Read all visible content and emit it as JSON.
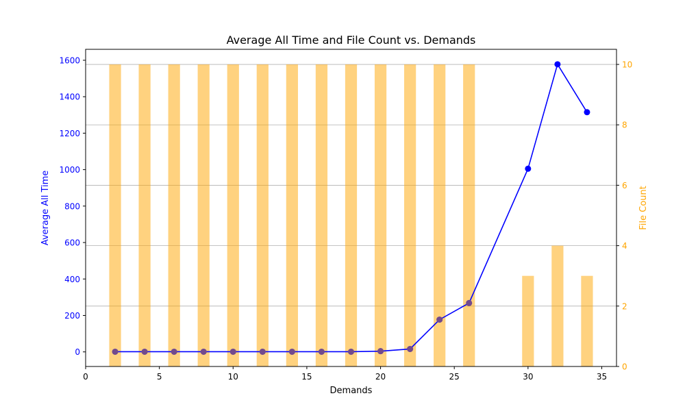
{
  "chart_data": {
    "type": "bar+line",
    "title": "Average All Time and File Count vs. Demands",
    "xlabel": "Demands",
    "ylabel_left": "Average All Time",
    "ylabel_right": "File Count",
    "xlim": [
      0,
      36
    ],
    "ylim_left": [
      -80,
      1660
    ],
    "ylim_right": [
      0,
      10.5
    ],
    "x_ticks": [
      0,
      5,
      10,
      15,
      20,
      25,
      30,
      35
    ],
    "y_left_ticks": [
      0,
      200,
      400,
      600,
      800,
      1000,
      1200,
      1400,
      1600
    ],
    "y_right_ticks": [
      0,
      2,
      4,
      6,
      8,
      10
    ],
    "grid": "horizontal on right axis",
    "colors": {
      "line": "#0000ff",
      "bars": "#ffa500",
      "left_axis": "#0000ff",
      "right_axis": "#ffa500"
    },
    "series": [
      {
        "kind": "line",
        "axis": "left",
        "x": [
          2,
          4,
          6,
          8,
          10,
          12,
          14,
          16,
          18,
          20,
          22,
          24,
          26,
          30,
          32,
          34
        ],
        "values": [
          1,
          1,
          1,
          1,
          1,
          1,
          1,
          1,
          1,
          4,
          16,
          177,
          268,
          1005,
          1578,
          1315
        ]
      },
      {
        "kind": "bar",
        "axis": "right",
        "x": [
          2,
          4,
          6,
          8,
          10,
          12,
          14,
          16,
          18,
          20,
          22,
          24,
          26,
          30,
          32,
          34
        ],
        "values": [
          10,
          10,
          10,
          10,
          10,
          10,
          10,
          10,
          10,
          10,
          10,
          10,
          10,
          3,
          4,
          3
        ]
      }
    ]
  }
}
